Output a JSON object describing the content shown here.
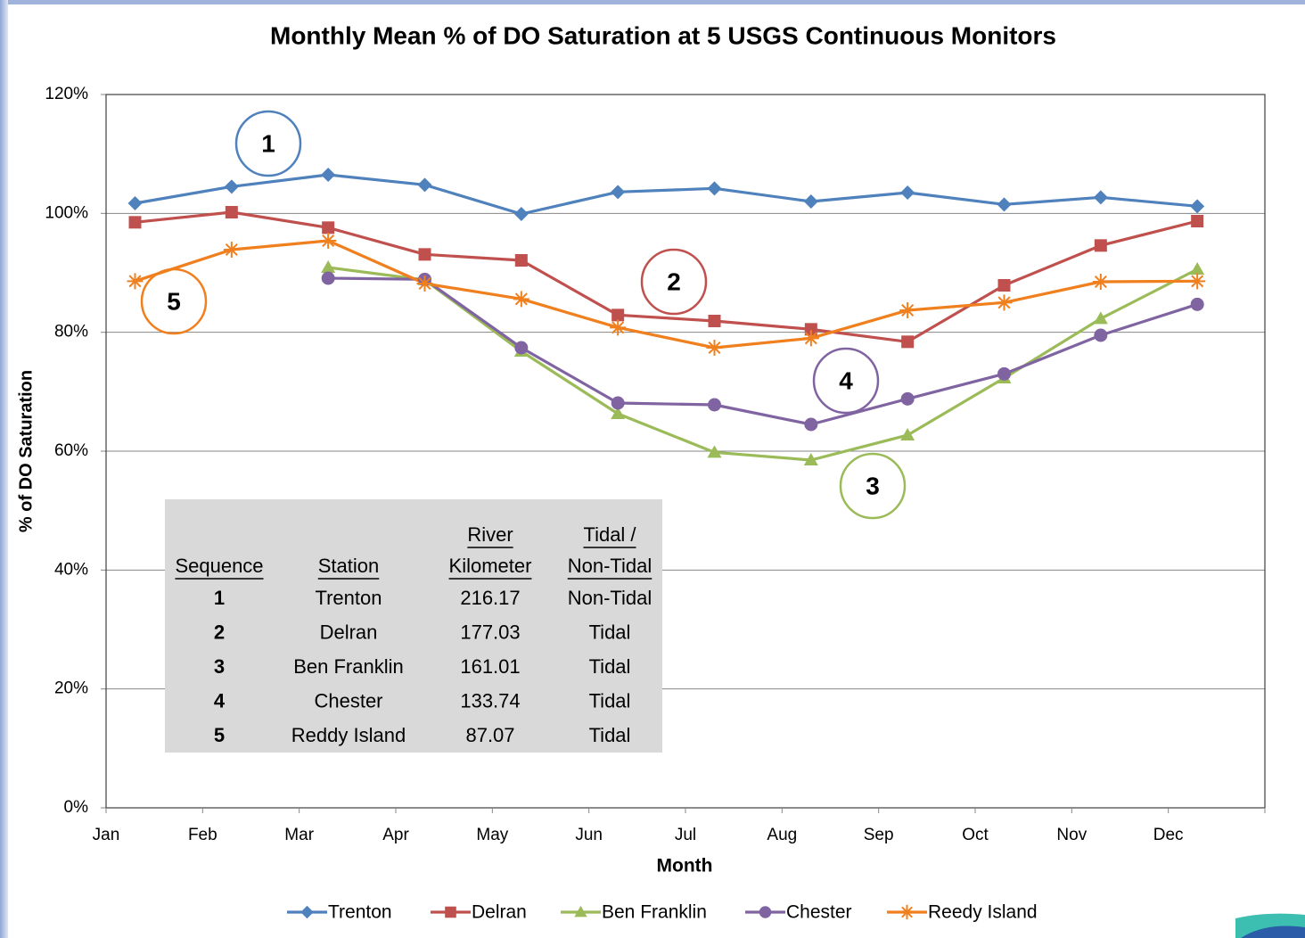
{
  "chart_data": {
    "type": "line",
    "title": "Monthly Mean % of DO Saturation at 5 USGS Continuous Monitors",
    "x_label": "Month",
    "y_label": "% of DO Saturation",
    "categories": [
      "Jan",
      "Feb",
      "Mar",
      "Apr",
      "May",
      "Jun",
      "Jul",
      "Aug",
      "Sep",
      "Oct",
      "Nov",
      "Dec"
    ],
    "ylim": [
      0,
      120
    ],
    "yticks": [
      {
        "value": 0,
        "label": "0%"
      },
      {
        "value": 20,
        "label": "20%"
      },
      {
        "value": 40,
        "label": "40%"
      },
      {
        "value": 60,
        "label": "60%"
      },
      {
        "value": 80,
        "label": "80%"
      },
      {
        "value": 100,
        "label": "100%"
      },
      {
        "value": 120,
        "label": "120%"
      }
    ],
    "grid": true,
    "legend": "bottom",
    "series": [
      {
        "name": "Trenton",
        "color": "#4f81bd",
        "marker": "diamond",
        "values": [
          101.7,
          104.5,
          106.5,
          104.8,
          99.9,
          103.6,
          104.2,
          102.0,
          103.5,
          101.5,
          102.7,
          101.2
        ]
      },
      {
        "name": "Delran",
        "color": "#c0504d",
        "marker": "square",
        "values": [
          98.5,
          100.2,
          97.6,
          93.1,
          92.1,
          82.9,
          81.9,
          80.5,
          78.4,
          87.9,
          94.6,
          98.7
        ]
      },
      {
        "name": "Ben Franklin",
        "color": "#9bbb59",
        "marker": "triangle",
        "values": [
          null,
          null,
          90.9,
          88.8,
          76.8,
          66.3,
          59.8,
          58.5,
          62.7,
          72.3,
          82.3,
          90.6
        ]
      },
      {
        "name": "Chester",
        "color": "#8064a2",
        "marker": "circle",
        "values": [
          null,
          null,
          89.1,
          88.9,
          77.4,
          68.1,
          67.8,
          64.5,
          68.8,
          73.0,
          79.5,
          84.7
        ]
      },
      {
        "name": "Reedy Island",
        "color": "#f07f1e",
        "marker": "asterisk",
        "values": [
          88.6,
          93.9,
          95.4,
          88.2,
          85.6,
          80.8,
          77.4,
          79.0,
          83.7,
          85.0,
          88.5,
          88.6
        ]
      }
    ],
    "annotations": [
      "1",
      "2",
      "3",
      "4",
      "5"
    ],
    "table": {
      "header": [
        [
          "Sequence"
        ],
        [
          "Station"
        ],
        [
          "River",
          "Kilometer"
        ],
        [
          "Tidal /",
          "Non-Tidal"
        ]
      ],
      "rows": [
        [
          1,
          "Trenton",
          216.17,
          "Non-Tidal"
        ],
        [
          2,
          "Delran",
          177.03,
          "Tidal"
        ],
        [
          3,
          "Ben Franklin",
          161.01,
          "Tidal"
        ],
        [
          4,
          "Chester",
          133.74,
          "Tidal"
        ],
        [
          5,
          "Reddy Island",
          87.07,
          "Tidal"
        ]
      ]
    }
  }
}
